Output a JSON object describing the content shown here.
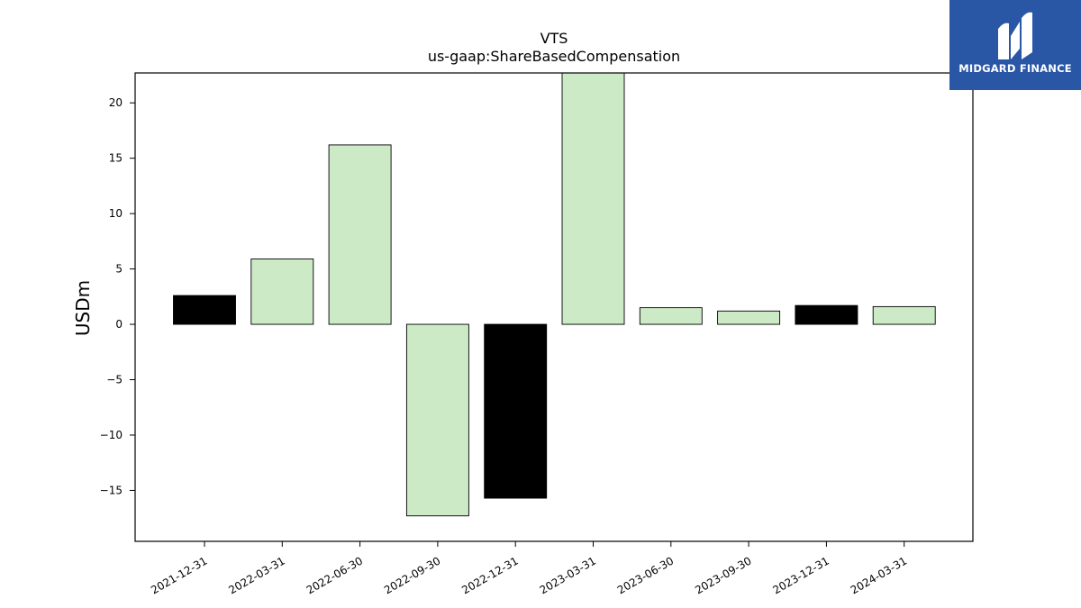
{
  "chart_data": {
    "type": "bar",
    "title": "VTS",
    "subtitle": "us-gaap:ShareBasedCompensation",
    "ylabel": "USDm",
    "xlabel": "",
    "ylim": [
      -19.6,
      22.7
    ],
    "yticks": [
      -15,
      -10,
      -5,
      0,
      5,
      10,
      15,
      20
    ],
    "categories": [
      "2021-12-31",
      "2022-03-31",
      "2022-06-30",
      "2022-09-30",
      "2022-12-31",
      "2023-03-31",
      "2023-06-30",
      "2023-09-30",
      "2023-12-31",
      "2024-03-31"
    ],
    "values": [
      2.6,
      5.9,
      16.2,
      -17.3,
      -15.7,
      22.7,
      1.5,
      1.2,
      1.7,
      1.6
    ],
    "bar_colors": [
      "#000000",
      "#cdeac6",
      "#cdeac6",
      "#cdeac6",
      "#000000",
      "#cdeac6",
      "#cdeac6",
      "#cdeac6",
      "#000000",
      "#cdeac6"
    ],
    "grid": false,
    "legend": "none"
  },
  "logo": {
    "text": "MIDGARD FINANCE",
    "background": "#2a56a6"
  }
}
